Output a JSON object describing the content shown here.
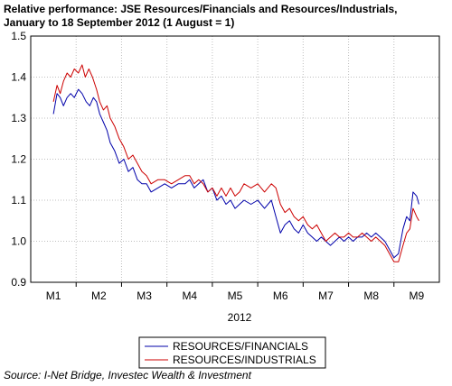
{
  "chart_data": {
    "type": "line",
    "title_line1": "Relative performance: JSE Resources/Financials and Resources/Industrials,",
    "title_line2": "January to 18 September 2012 (1 August = 1)",
    "xlabel": "2012",
    "ylabel": "",
    "ylim": [
      0.9,
      1.5
    ],
    "yticks": [
      "1.5",
      "1.4",
      "1.3",
      "1.2",
      "1.1",
      "1.0",
      "0.9"
    ],
    "yticks_values": [
      1.5,
      1.4,
      1.3,
      1.2,
      1.1,
      1.0,
      0.9
    ],
    "x_categories": [
      "M1",
      "M2",
      "M3",
      "M4",
      "M5",
      "M6",
      "M7",
      "M8",
      "M9"
    ],
    "grid": true,
    "legend_placement": "bottom-center",
    "series": [
      {
        "name": "RESOURCES/FINANCIALS",
        "color": "#0000aa",
        "points": [
          [
            1.0,
            1.31
          ],
          [
            1.08,
            1.36
          ],
          [
            1.15,
            1.35
          ],
          [
            1.22,
            1.33
          ],
          [
            1.3,
            1.35
          ],
          [
            1.38,
            1.36
          ],
          [
            1.46,
            1.35
          ],
          [
            1.55,
            1.37
          ],
          [
            1.63,
            1.36
          ],
          [
            1.72,
            1.34
          ],
          [
            1.8,
            1.33
          ],
          [
            1.88,
            1.35
          ],
          [
            1.95,
            1.34
          ],
          [
            2.02,
            1.31
          ],
          [
            2.1,
            1.29
          ],
          [
            2.18,
            1.27
          ],
          [
            2.25,
            1.24
          ],
          [
            2.35,
            1.22
          ],
          [
            2.45,
            1.19
          ],
          [
            2.55,
            1.2
          ],
          [
            2.65,
            1.17
          ],
          [
            2.75,
            1.18
          ],
          [
            2.85,
            1.15
          ],
          [
            2.95,
            1.14
          ],
          [
            3.05,
            1.14
          ],
          [
            3.15,
            1.12
          ],
          [
            3.3,
            1.13
          ],
          [
            3.45,
            1.14
          ],
          [
            3.6,
            1.13
          ],
          [
            3.75,
            1.14
          ],
          [
            3.9,
            1.14
          ],
          [
            4.0,
            1.15
          ],
          [
            4.1,
            1.13
          ],
          [
            4.2,
            1.14
          ],
          [
            4.3,
            1.15
          ],
          [
            4.4,
            1.12
          ],
          [
            4.5,
            1.13
          ],
          [
            4.6,
            1.1
          ],
          [
            4.7,
            1.11
          ],
          [
            4.8,
            1.09
          ],
          [
            4.9,
            1.1
          ],
          [
            5.0,
            1.08
          ],
          [
            5.1,
            1.09
          ],
          [
            5.2,
            1.1
          ],
          [
            5.35,
            1.09
          ],
          [
            5.5,
            1.1
          ],
          [
            5.65,
            1.08
          ],
          [
            5.8,
            1.1
          ],
          [
            5.9,
            1.06
          ],
          [
            6.0,
            1.02
          ],
          [
            6.1,
            1.04
          ],
          [
            6.2,
            1.05
          ],
          [
            6.3,
            1.03
          ],
          [
            6.4,
            1.02
          ],
          [
            6.5,
            1.04
          ],
          [
            6.6,
            1.02
          ],
          [
            6.7,
            1.01
          ],
          [
            6.8,
            1.0
          ],
          [
            6.9,
            1.01
          ],
          [
            7.0,
            1.0
          ],
          [
            7.1,
            0.99
          ],
          [
            7.2,
            1.0
          ],
          [
            7.3,
            1.01
          ],
          [
            7.4,
            1.0
          ],
          [
            7.5,
            1.01
          ],
          [
            7.6,
            1.0
          ],
          [
            7.7,
            1.01
          ],
          [
            7.8,
            1.01
          ],
          [
            7.9,
            1.02
          ],
          [
            8.0,
            1.01
          ],
          [
            8.1,
            1.02
          ],
          [
            8.2,
            1.01
          ],
          [
            8.3,
            1.0
          ],
          [
            8.4,
            0.98
          ],
          [
            8.5,
            0.96
          ],
          [
            8.6,
            0.97
          ],
          [
            8.7,
            1.03
          ],
          [
            8.78,
            1.06
          ],
          [
            8.85,
            1.05
          ],
          [
            8.92,
            1.12
          ],
          [
            9.0,
            1.11
          ],
          [
            9.05,
            1.09
          ]
        ]
      },
      {
        "name": "RESOURCES/INDUSTRIALS",
        "color": "#cc0000",
        "points": [
          [
            1.0,
            1.34
          ],
          [
            1.08,
            1.38
          ],
          [
            1.15,
            1.36
          ],
          [
            1.22,
            1.39
          ],
          [
            1.3,
            1.41
          ],
          [
            1.38,
            1.4
          ],
          [
            1.46,
            1.42
          ],
          [
            1.55,
            1.41
          ],
          [
            1.63,
            1.43
          ],
          [
            1.7,
            1.4
          ],
          [
            1.78,
            1.42
          ],
          [
            1.86,
            1.4
          ],
          [
            1.95,
            1.37
          ],
          [
            2.02,
            1.34
          ],
          [
            2.1,
            1.32
          ],
          [
            2.18,
            1.33
          ],
          [
            2.25,
            1.3
          ],
          [
            2.35,
            1.28
          ],
          [
            2.45,
            1.25
          ],
          [
            2.55,
            1.23
          ],
          [
            2.65,
            1.2
          ],
          [
            2.75,
            1.21
          ],
          [
            2.85,
            1.19
          ],
          [
            2.95,
            1.17
          ],
          [
            3.05,
            1.16
          ],
          [
            3.15,
            1.14
          ],
          [
            3.3,
            1.15
          ],
          [
            3.45,
            1.15
          ],
          [
            3.6,
            1.14
          ],
          [
            3.75,
            1.15
          ],
          [
            3.9,
            1.16
          ],
          [
            4.0,
            1.16
          ],
          [
            4.1,
            1.14
          ],
          [
            4.2,
            1.15
          ],
          [
            4.3,
            1.14
          ],
          [
            4.4,
            1.12
          ],
          [
            4.5,
            1.13
          ],
          [
            4.6,
            1.11
          ],
          [
            4.7,
            1.13
          ],
          [
            4.8,
            1.11
          ],
          [
            4.9,
            1.13
          ],
          [
            5.0,
            1.11
          ],
          [
            5.1,
            1.12
          ],
          [
            5.2,
            1.14
          ],
          [
            5.35,
            1.13
          ],
          [
            5.5,
            1.14
          ],
          [
            5.65,
            1.12
          ],
          [
            5.8,
            1.14
          ],
          [
            5.9,
            1.13
          ],
          [
            6.0,
            1.09
          ],
          [
            6.1,
            1.07
          ],
          [
            6.2,
            1.08
          ],
          [
            6.3,
            1.06
          ],
          [
            6.4,
            1.05
          ],
          [
            6.5,
            1.06
          ],
          [
            6.6,
            1.04
          ],
          [
            6.7,
            1.03
          ],
          [
            6.8,
            1.04
          ],
          [
            6.9,
            1.02
          ],
          [
            7.0,
            1.0
          ],
          [
            7.1,
            1.01
          ],
          [
            7.2,
            1.02
          ],
          [
            7.3,
            1.01
          ],
          [
            7.4,
            1.01
          ],
          [
            7.5,
            1.02
          ],
          [
            7.6,
            1.01
          ],
          [
            7.7,
            1.01
          ],
          [
            7.8,
            1.02
          ],
          [
            7.9,
            1.01
          ],
          [
            8.0,
            1.0
          ],
          [
            8.1,
            1.01
          ],
          [
            8.2,
            1.0
          ],
          [
            8.3,
            0.99
          ],
          [
            8.4,
            0.97
          ],
          [
            8.5,
            0.95
          ],
          [
            8.6,
            0.95
          ],
          [
            8.7,
            0.99
          ],
          [
            8.78,
            1.02
          ],
          [
            8.85,
            1.03
          ],
          [
            8.92,
            1.08
          ],
          [
            9.0,
            1.06
          ],
          [
            9.05,
            1.05
          ]
        ]
      }
    ]
  },
  "source": "Source: I-Net Bridge, Investec Wealth & Investment"
}
